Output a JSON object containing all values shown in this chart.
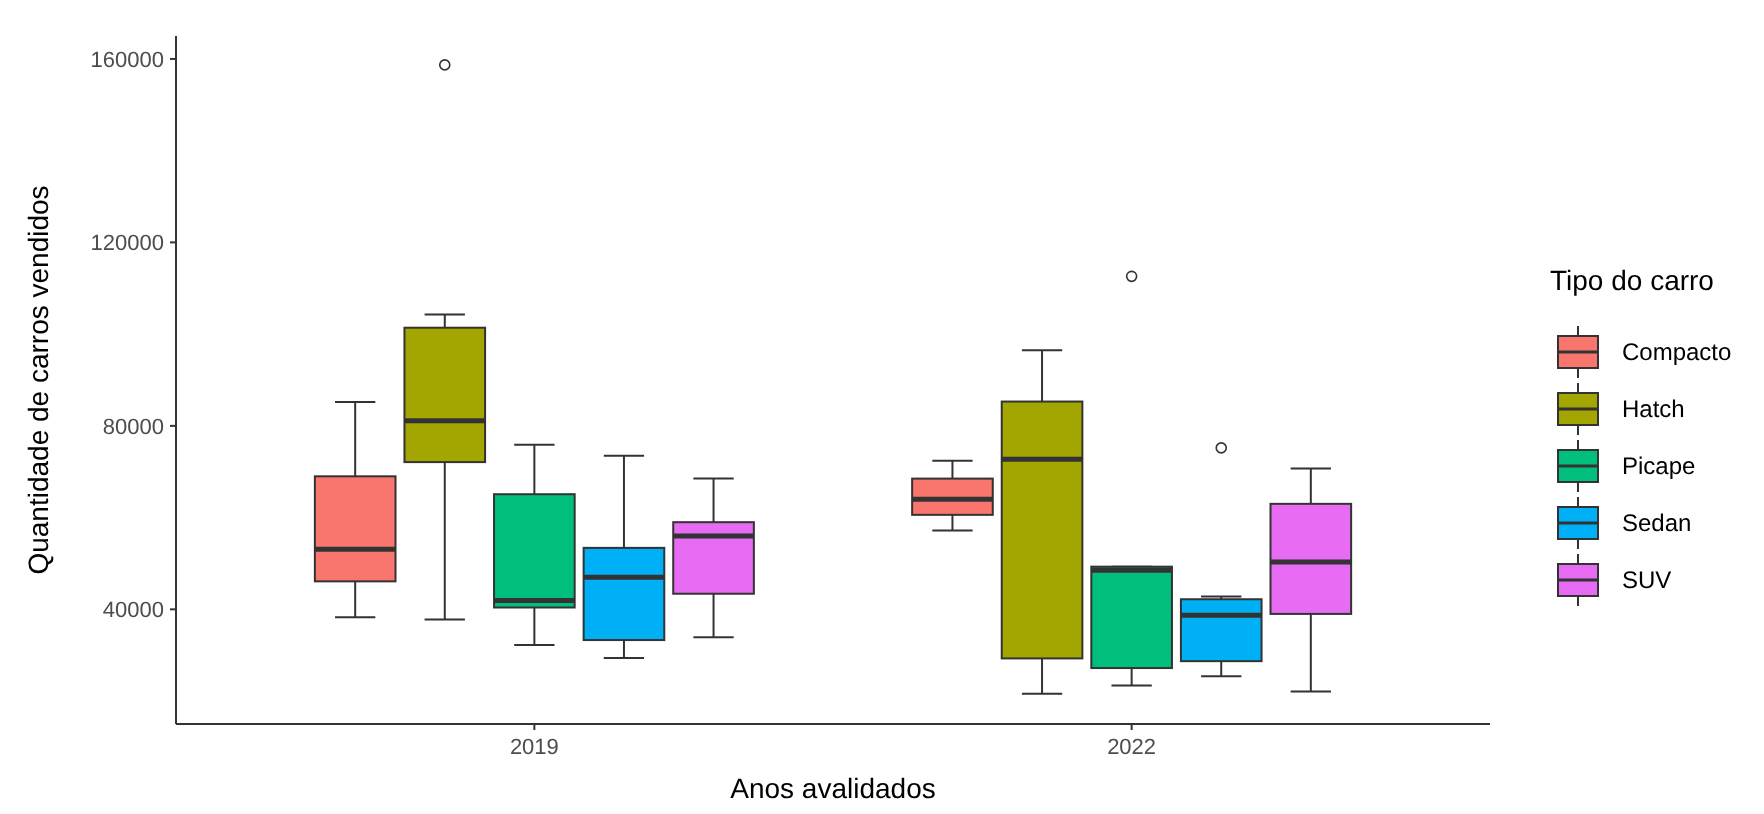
{
  "chart_data": {
    "type": "box",
    "xlabel": "Anos avalidados",
    "ylabel": "Quantidade de carros vendidos",
    "legend_title": "Tipo do carro",
    "legend": "right",
    "grid": false,
    "categories": [
      "2019",
      "2022"
    ],
    "ylim": [
      15000,
      165000
    ],
    "yticks": [
      40000,
      80000,
      120000,
      160000
    ],
    "series": [
      {
        "name": "Compacto",
        "color": "#f8766d",
        "boxes": [
          {
            "low": 38300,
            "q1": 46100,
            "median": 53100,
            "q3": 69000,
            "high": 85200
          },
          {
            "low": 57200,
            "q1": 60600,
            "median": 64000,
            "q3": 68500,
            "high": 72400
          }
        ]
      },
      {
        "name": "Hatch",
        "color": "#a3a500",
        "boxes": [
          {
            "low": 37800,
            "q1": 72100,
            "median": 81100,
            "q3": 101400,
            "high": 104300,
            "outliers": [
              158700
            ]
          },
          {
            "low": 21600,
            "q1": 29300,
            "median": 72700,
            "q3": 85300,
            "high": 96500
          }
        ]
      },
      {
        "name": "Picape",
        "color": "#00bf7d",
        "boxes": [
          {
            "low": 32200,
            "q1": 40400,
            "median": 41900,
            "q3": 65100,
            "high": 75900
          },
          {
            "low": 23400,
            "q1": 27200,
            "median": 48500,
            "q3": 49300,
            "high": 49300,
            "outliers": [
              112600
            ]
          }
        ]
      },
      {
        "name": "Sedan",
        "color": "#00b0f6",
        "boxes": [
          {
            "low": 29400,
            "q1": 33300,
            "median": 47000,
            "q3": 53400,
            "high": 73500
          },
          {
            "low": 25400,
            "q1": 28700,
            "median": 38700,
            "q3": 42200,
            "high": 42800,
            "outliers": [
              75200
            ]
          }
        ]
      },
      {
        "name": "SUV",
        "color": "#e76bf3",
        "boxes": [
          {
            "low": 33900,
            "q1": 43400,
            "median": 56000,
            "q3": 59000,
            "high": 68500
          },
          {
            "low": 22100,
            "q1": 39000,
            "median": 50300,
            "q3": 63000,
            "high": 70700
          }
        ]
      }
    ]
  }
}
